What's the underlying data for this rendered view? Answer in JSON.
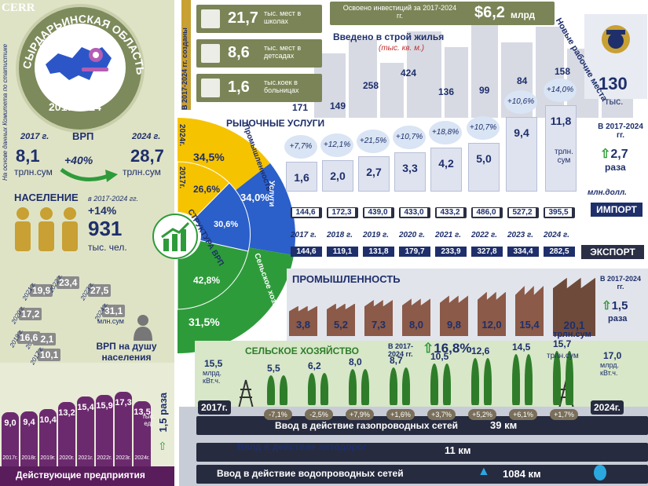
{
  "brand": "CERR",
  "region_title": "СЫРДАРЬИНСКАЯ ОБЛАСТЬ",
  "period": "2017-2024",
  "source_note": "На основе данных Комитета по статистике",
  "grp": {
    "title": "ВРП",
    "y2017_label": "2017 г.",
    "y2024_label": "2024 г.",
    "v2017": "8,1",
    "v2024": "28,7",
    "unit": "трлн.сум",
    "growth": "+40%"
  },
  "population": {
    "title": "НАСЕЛЕНИЕ",
    "period": "в 2017-2024 гг.",
    "growth": "+14%",
    "value": "931",
    "unit": "тыс. чел."
  },
  "per_capita": {
    "title": "ВРП на душу населения",
    "unit": "млн.сум",
    "years": [
      {
        "y": "2017 г.",
        "v": "10,1"
      },
      {
        "y": "2018 г.",
        "v": "12,1"
      },
      {
        "y": "2019 г.",
        "v": "16,6"
      },
      {
        "y": "2020 г.",
        "v": "17,2"
      },
      {
        "y": "2021 г.",
        "v": "19,9"
      },
      {
        "y": "2022 г.",
        "v": "23,4"
      },
      {
        "y": "2023 г.",
        "v": "27,5"
      },
      {
        "y": "2024 г.",
        "v": "31,1"
      }
    ]
  },
  "enterprises": {
    "title": "Действующие предприятия",
    "unit": "тыс. ед.",
    "growth": "1,5",
    "growth_unit": "раза",
    "values": [
      "9,0",
      "9,4",
      "10,4",
      "13,2",
      "15,4",
      "15,9",
      "17,3",
      "13,5"
    ],
    "years": [
      "2017г.",
      "2018г.",
      "2019г.",
      "2020г.",
      "2021г.",
      "2022г.",
      "2023г.",
      "2024г."
    ]
  },
  "structure": {
    "year_a": "2024г.",
    "year_b": "2017г.",
    "sectors": [
      {
        "name": "Промышленность",
        "v2024": "34,5%",
        "v2017": "26,6%"
      },
      {
        "name": "Услуги",
        "v2024": "34,0%",
        "v2017": "30,6%"
      },
      {
        "name": "Сельское хозяйство",
        "v2024": "31,5%",
        "v2017": "42,8%"
      }
    ],
    "center": "СТРУКТУРА ВРП"
  },
  "created_title": "В 2017-2024 гг. созданы",
  "created": [
    {
      "value": "21,7",
      "label": "тыс. мест в школах",
      "icon": "school-icon"
    },
    {
      "value": "8,6",
      "label": "тыс. мест в детсадах",
      "icon": "kindergarten-icon"
    },
    {
      "value": "1,6",
      "label": "тыс.коек в больницах",
      "icon": "hospital-bed-icon"
    }
  ],
  "investment": {
    "label": "Освоено инвестиций за 2017-2024 гг.",
    "value": "$6,2",
    "unit": "млрд"
  },
  "housing": {
    "title": "Введено в строй жилья",
    "unit": "(тыс. кв. м.)",
    "values": [
      "171",
      "149",
      "258",
      "424",
      "136",
      "99",
      "84",
      "158"
    ]
  },
  "jobs": {
    "title": "Новые рабочие места",
    "value": "130",
    "unit": "тыс."
  },
  "services": {
    "title": "РЫНОЧНЫЕ УСЛУГИ",
    "values": [
      "1,6",
      "2,0",
      "2,7",
      "3,3",
      "4,2",
      "5,0",
      "9,4",
      "11,8"
    ],
    "growth": [
      "+7,7%",
      "+12,1%",
      "+21,5%",
      "+10,7%",
      "+18,8%",
      "+10,7%",
      "+10,6%",
      "+14,0%"
    ],
    "unit": "трлн. сум",
    "period": "В 2017-2024 гг.",
    "mult": "2,7",
    "mult_unit": "раза"
  },
  "trade": {
    "unit": "млн.долл.",
    "import_label": "ИМПОРТ",
    "export_label": "ЭКСПОРТ",
    "import": [
      "144,6",
      "172,3",
      "439,0",
      "433,0",
      "433,2",
      "486,0",
      "527,2",
      "395,5"
    ],
    "export": [
      "144,6",
      "119,1",
      "131,8",
      "179,7",
      "233,9",
      "327,8",
      "334,4",
      "282,5"
    ],
    "years": [
      "2017 г.",
      "2018 г.",
      "2019 г.",
      "2020 г.",
      "2021 г.",
      "2022 г.",
      "2023 г.",
      "2024 г."
    ]
  },
  "industry": {
    "title": "ПРОМЫШЛЕННОСТЬ",
    "values": [
      "3,8",
      "5,2",
      "7,3",
      "8,0",
      "9,8",
      "12,0",
      "15,4",
      "20,1"
    ],
    "unit": "трлн.сум",
    "period": "В 2017-2024 гг.",
    "mult": "1,5",
    "mult_unit": "раза"
  },
  "agriculture": {
    "title": "СЕЛЬСКОЕ ХОЗЯЙСТВО",
    "period": "В 2017-2024 гг.",
    "growth": "16,8%",
    "values": [
      "5,5",
      "6,2",
      "8,0",
      "8,7",
      "10,5",
      "12,6",
      "14,5",
      "15,7"
    ],
    "unit": "трлн.сум",
    "pct": [
      "-7,1%",
      "-2,5%",
      "+7,9%",
      "+1,6%",
      "+3,7%",
      "+5,2%",
      "+6,1%",
      "+1,7%"
    ]
  },
  "energy": {
    "v2017": "15,5",
    "v2024": "17,0",
    "unit": "млрд. кВт.ч.",
    "y2017": "2017г.",
    "y2024": "2024г."
  },
  "roads": [
    {
      "label": "Ввод в действие газопроводных сетей",
      "value": "39 км"
    },
    {
      "label": "Ввод в действие автодорог",
      "value": "11 км"
    },
    {
      "label": "Ввод в действие водопроводных сетей",
      "value": "1084 км"
    }
  ]
}
